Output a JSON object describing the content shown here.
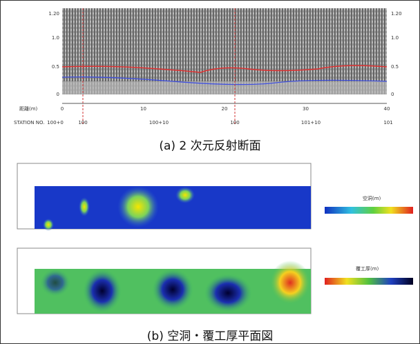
{
  "panel_a": {
    "y_ticks": [
      "1.20",
      "1.0",
      "0.5",
      "0"
    ],
    "x_label": "距離(m)",
    "x_ticks": [
      "0",
      "10",
      "20",
      "30",
      "40"
    ],
    "station_label": "STATION NO.",
    "stations": [
      "100+0",
      "100",
      "100+10",
      "100",
      "101+10",
      "101"
    ],
    "caption": "(a) 2 次元反射断面"
  },
  "panel_b": {
    "legend_1": "空洞(m)",
    "legend_2": "覆工厚(m)",
    "caption": "(b) 空洞・覆工厚平面図"
  }
}
